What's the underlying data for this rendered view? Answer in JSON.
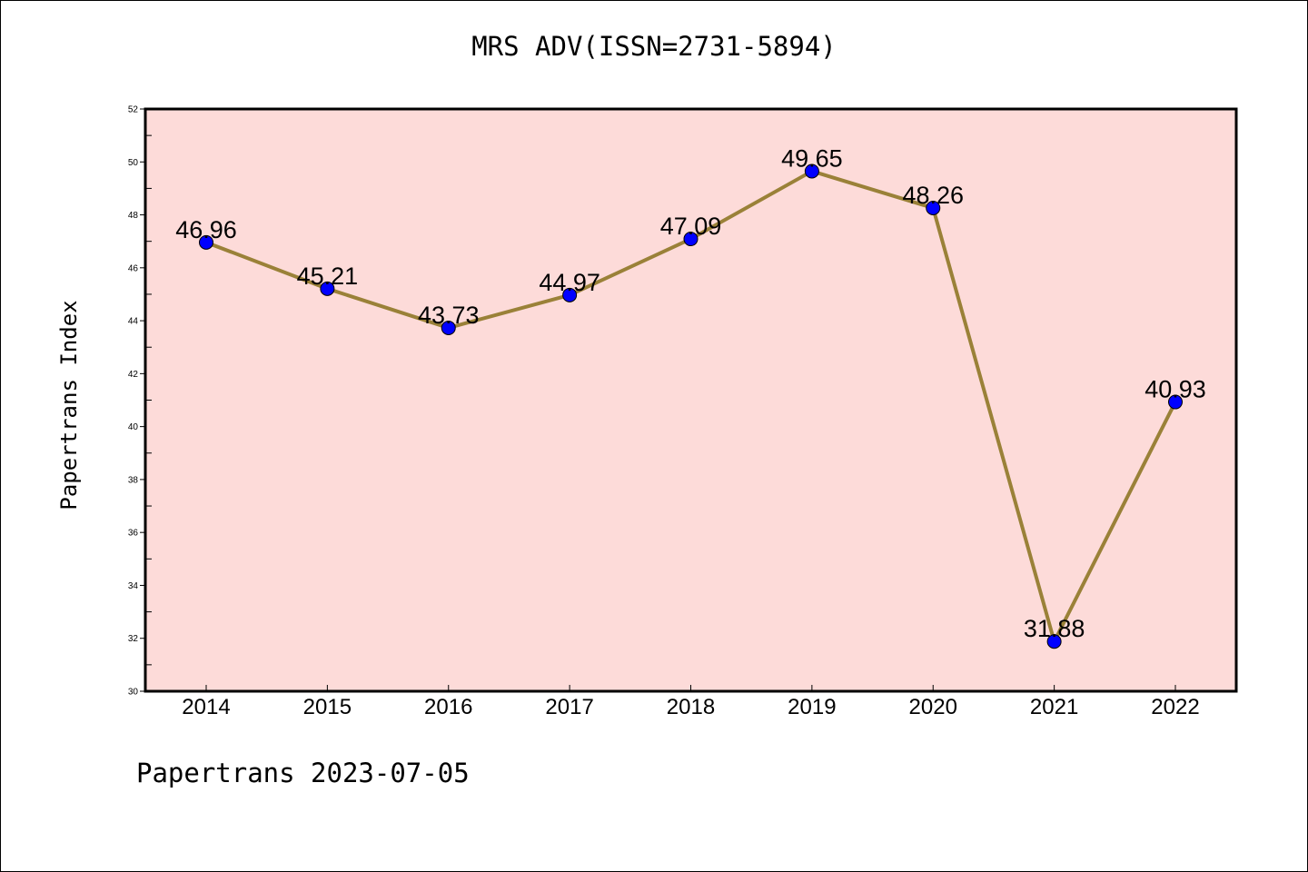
{
  "title": "MRS ADV(ISSN=2731-5894)",
  "footer": "Papertrans 2023-07-05",
  "colors": {
    "plot_background": "#fddbd9",
    "line": "#9a8138",
    "marker": "#0000ff"
  },
  "chart_data": {
    "type": "line",
    "title": "MRS ADV(ISSN=2731-5894)",
    "xlabel": "",
    "ylabel": "Papertrans Index",
    "categories": [
      "2014",
      "2015",
      "2016",
      "2017",
      "2018",
      "2019",
      "2020",
      "2021",
      "2022"
    ],
    "values": [
      46.96,
      45.21,
      43.73,
      44.97,
      47.09,
      49.65,
      48.26,
      31.88,
      40.93
    ],
    "data_labels": [
      "46.96",
      "45.21",
      "43.73",
      "44.97",
      "47.09",
      "49.65",
      "48.26",
      "31.88",
      "40.93"
    ],
    "ylim": [
      30,
      52
    ],
    "yticks": [
      "30",
      "32",
      "34",
      "36",
      "38",
      "40",
      "42",
      "44",
      "46",
      "48",
      "50",
      "52"
    ],
    "grid": false,
    "legend": "none"
  }
}
